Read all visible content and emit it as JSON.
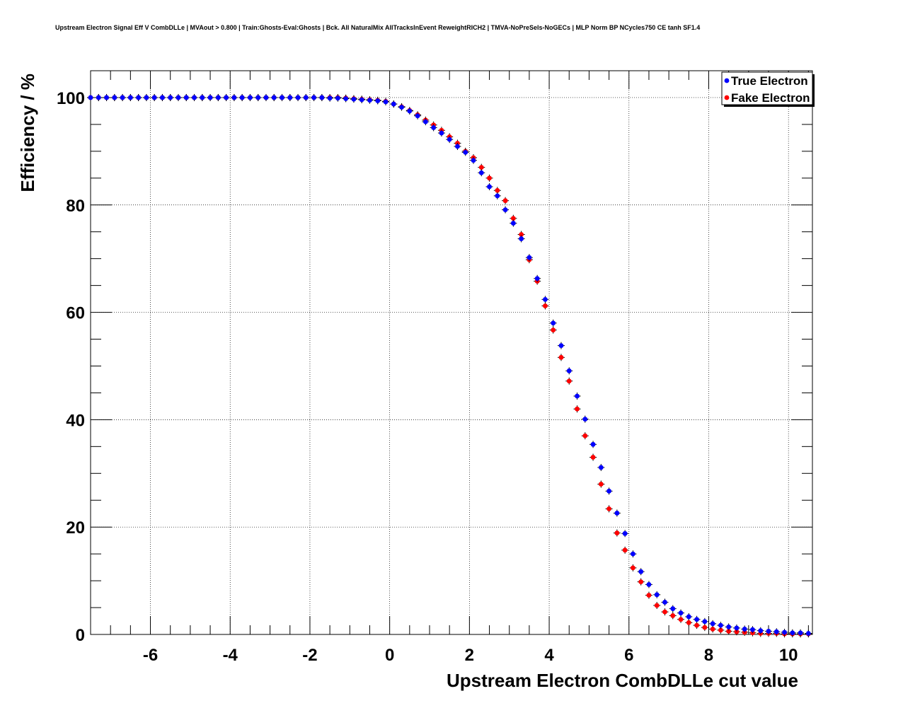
{
  "chart_data": {
    "type": "scatter",
    "title": "Upstream Electron Signal Eff V CombDLLe | MVAout > 0.800 | Train:Ghosts-Eval:Ghosts | Bck. All NaturalMix AllTracksInEvent ReweightRICH2 | TMVA-NoPreSels-NoGECs | MLP Norm BP NCycles750 CE tanh SF1.4",
    "xlabel": "Upstream Electron CombDLLe cut value",
    "ylabel": "Efficiency / %",
    "xlim": [
      -7.5,
      10.6
    ],
    "ylim": [
      0,
      105
    ],
    "grid": true,
    "legend_position": "top-right",
    "x_ticks": [
      -6,
      -4,
      -2,
      0,
      2,
      4,
      6,
      8,
      10
    ],
    "y_ticks": [
      0,
      20,
      40,
      60,
      80,
      100
    ],
    "x_tick_labels": [
      "-6",
      "-4",
      "-2",
      "0",
      "2",
      "4",
      "6",
      "8",
      "10"
    ],
    "y_tick_labels": [
      "0",
      "20",
      "40",
      "60",
      "80",
      "100"
    ],
    "x": [
      -7.5,
      -7.3,
      -7.1,
      -6.9,
      -6.7,
      -6.5,
      -6.3,
      -6.1,
      -5.9,
      -5.7,
      -5.5,
      -5.3,
      -5.1,
      -4.9,
      -4.7,
      -4.5,
      -4.3,
      -4.1,
      -3.9,
      -3.7,
      -3.5,
      -3.3,
      -3.1,
      -2.9,
      -2.7,
      -2.5,
      -2.3,
      -2.1,
      -1.9,
      -1.7,
      -1.5,
      -1.3,
      -1.1,
      -0.9,
      -0.7,
      -0.5,
      -0.3,
      -0.1,
      0.1,
      0.3,
      0.5,
      0.7,
      0.9,
      1.1,
      1.3,
      1.5,
      1.7,
      1.9,
      2.1,
      2.3,
      2.5,
      2.7,
      2.9,
      3.1,
      3.3,
      3.5,
      3.7,
      3.9,
      4.1,
      4.3,
      4.5,
      4.7,
      4.9,
      5.1,
      5.3,
      5.5,
      5.7,
      5.9,
      6.1,
      6.3,
      6.5,
      6.7,
      6.9,
      7.1,
      7.3,
      7.5,
      7.7,
      7.9,
      8.1,
      8.3,
      8.5,
      8.7,
      8.9,
      9.1,
      9.3,
      9.5,
      9.7,
      9.9,
      10.1,
      10.3,
      10.5
    ],
    "series": [
      {
        "name": "True Electron",
        "color": "#0000ff",
        "values": [
          100,
          100,
          100,
          100,
          100,
          100,
          100,
          100,
          100,
          100,
          100,
          100,
          100,
          100,
          100,
          100,
          100,
          100,
          100,
          100,
          100,
          100,
          100,
          100,
          100,
          100,
          100,
          100,
          100,
          100,
          99.9,
          99.9,
          99.8,
          99.7,
          99.6,
          99.5,
          99.4,
          99.2,
          98.8,
          98.2,
          97.5,
          96.6,
          95.5,
          94.4,
          93.4,
          92.2,
          90.9,
          89.8,
          88.3,
          86.0,
          83.4,
          81.7,
          79.1,
          76.6,
          73.7,
          70.2,
          66.3,
          62.4,
          58.0,
          53.8,
          49.1,
          44.4,
          40.1,
          35.4,
          31.1,
          26.7,
          22.6,
          18.8,
          15.0,
          11.7,
          9.3,
          7.4,
          6.0,
          4.8,
          4.0,
          3.3,
          2.8,
          2.4,
          2.0,
          1.7,
          1.4,
          1.2,
          1.0,
          0.9,
          0.7,
          0.6,
          0.5,
          0.4,
          0.3,
          0.3,
          0.2
        ]
      },
      {
        "name": "Fake Electron",
        "color": "#ff0000",
        "values": [
          100,
          100,
          100,
          100,
          100,
          100,
          100,
          100,
          100,
          100,
          100,
          100,
          100,
          100,
          100,
          100,
          100,
          100,
          100,
          100,
          100,
          100,
          100,
          100,
          100,
          100,
          100,
          100,
          100,
          100,
          100,
          100,
          99.9,
          99.8,
          99.7,
          99.6,
          99.5,
          99.3,
          98.8,
          98.3,
          97.6,
          96.8,
          95.8,
          94.9,
          93.9,
          92.7,
          91.5,
          90.0,
          88.8,
          87.0,
          85.0,
          82.7,
          80.8,
          77.5,
          74.5,
          69.8,
          65.8,
          61.2,
          56.7,
          51.6,
          47.2,
          42.0,
          37.0,
          33.0,
          28.0,
          23.4,
          18.9,
          15.7,
          12.4,
          9.8,
          7.3,
          5.4,
          4.2,
          3.5,
          2.8,
          2.2,
          1.7,
          1.3,
          1.0,
          0.8,
          0.6,
          0.5,
          0.4,
          0.3,
          0.2,
          0.2,
          0.2,
          0.1,
          0.1,
          0.1,
          0.1
        ]
      }
    ]
  }
}
